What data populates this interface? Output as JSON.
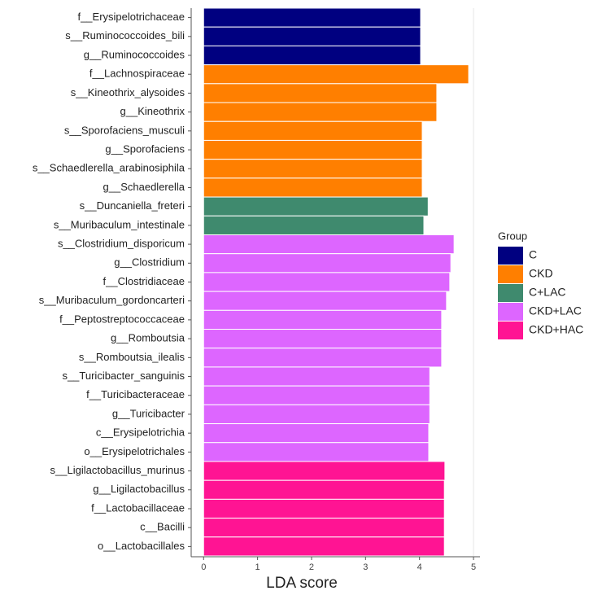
{
  "chart_data": {
    "type": "hbar",
    "xlabel": "LDA score",
    "legend_title": "Group",
    "legend_position": "right",
    "categories": [
      "f__Erysipelotrichaceae",
      "s__Ruminococcoides_bili",
      "g__Ruminococcoides",
      "f__Lachnospiraceae",
      "s__Kineothrix_alysoides",
      "g__Kineothrix",
      "s__Sporofaciens_musculi",
      "g__Sporofaciens",
      "s__Schaedlerella_arabinosiphila",
      "g__Schaedlerella",
      "s__Duncaniella_freteri",
      "s__Muribaculum_intestinale",
      "s__Clostridium_disporicum",
      "g__Clostridium",
      "f__Clostridiaceae",
      "s__Muribaculum_gordoncarteri",
      "f__Peptostreptococcaceae",
      "g__Romboutsia",
      "s__Romboutsia_ilealis",
      "s__Turicibacter_sanguinis",
      "f__Turicibacteraceae",
      "g__Turicibacter",
      "c__Erysipelotrichia",
      "o__Erysipelotrichales",
      "s__Ligilactobacillus_murinus",
      "g__Ligilactobacillus",
      "f__Lactobacillaceae",
      "c__Bacilli",
      "o__Lactobacillales"
    ],
    "series": [
      {
        "name": "C",
        "color": "#000080",
        "values": [
          4.02,
          4.02,
          4.02,
          null,
          null,
          null,
          null,
          null,
          null,
          null,
          null,
          null,
          null,
          null,
          null,
          null,
          null,
          null,
          null,
          null,
          null,
          null,
          null,
          null,
          null,
          null,
          null,
          null,
          null
        ]
      },
      {
        "name": "CKD",
        "color": "#ff7f00",
        "values": [
          null,
          null,
          null,
          4.91,
          4.32,
          4.32,
          4.05,
          4.05,
          4.05,
          4.05,
          null,
          null,
          null,
          null,
          null,
          null,
          null,
          null,
          null,
          null,
          null,
          null,
          null,
          null,
          null,
          null,
          null,
          null,
          null
        ]
      },
      {
        "name": "C+LAC",
        "color": "#3f8a6e",
        "values": [
          null,
          null,
          null,
          null,
          null,
          null,
          null,
          null,
          null,
          null,
          4.16,
          4.08,
          null,
          null,
          null,
          null,
          null,
          null,
          null,
          null,
          null,
          null,
          null,
          null,
          null,
          null,
          null,
          null,
          null
        ]
      },
      {
        "name": "CKD+LAC",
        "color": "#dd66ff",
        "values": [
          null,
          null,
          null,
          null,
          null,
          null,
          null,
          null,
          null,
          null,
          null,
          null,
          4.64,
          4.58,
          4.56,
          4.5,
          4.41,
          4.41,
          4.41,
          4.19,
          4.19,
          4.19,
          4.17,
          4.17,
          null,
          null,
          null,
          null,
          null
        ]
      },
      {
        "name": "CKD+HAC",
        "color": "#ff1493",
        "values": [
          null,
          null,
          null,
          null,
          null,
          null,
          null,
          null,
          null,
          null,
          null,
          null,
          null,
          null,
          null,
          null,
          null,
          null,
          null,
          null,
          null,
          null,
          null,
          null,
          4.47,
          4.46,
          4.46,
          4.46,
          4.46
        ]
      }
    ],
    "xlim": [
      -0.23,
      5.12
    ],
    "xticks": [
      0,
      1,
      2,
      3,
      4,
      5
    ]
  }
}
